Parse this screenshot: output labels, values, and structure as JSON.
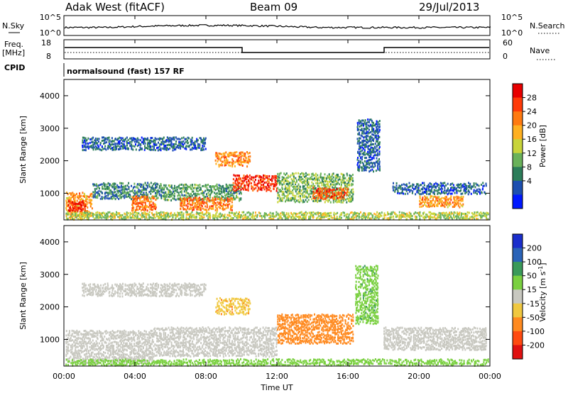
{
  "header": {
    "station": "Adak West (fitACF)",
    "beam": "Beam 09",
    "date": "29/Jul/2013"
  },
  "noise_panel": {
    "left_label": "N.Sky",
    "right_label": "N.Search",
    "left_ticks": [
      "10^5",
      "10^0"
    ],
    "right_ticks": [
      "10^5",
      "10^0"
    ]
  },
  "freq_panel": {
    "left_label_1": "Freq.",
    "left_label_2": "[MHz]",
    "right_label": "Nave",
    "left_ticks": [
      "18",
      "8"
    ],
    "right_ticks": [
      "60",
      "0"
    ]
  },
  "cpid": {
    "label": "CPID",
    "value": "normalsound (fast) 157 RF"
  },
  "colors": {
    "power_scale": [
      "#0018ff",
      "#1d4fb0",
      "#2c7d5a",
      "#6ab25a",
      "#c8d43a",
      "#ffb020",
      "#ff7a10",
      "#ff3a08",
      "#e80000"
    ],
    "velocity_scale": [
      "#1a2ecc",
      "#2a63b8",
      "#3a9a5a",
      "#7ad040",
      "#c8c8c0",
      "#f0c840",
      "#ff8a20",
      "#ff4a10",
      "#e01010"
    ]
  },
  "chart_data": [
    {
      "type": "heatmap",
      "title": "",
      "xlabel": "",
      "ylabel": "Slant Range [km]",
      "xlim": [
        "00:00",
        "00:00"
      ],
      "ylim": [
        180,
        4500
      ],
      "ytick_labels": [
        "1000",
        "2000",
        "3000",
        "4000"
      ],
      "colorbar": {
        "label": "Power [dB]",
        "range": [
          0,
          30
        ],
        "tick_labels": [
          "4",
          "8",
          "12",
          "16",
          "20",
          "24",
          "28"
        ]
      },
      "echo_regions": [
        {
          "t0": 0.0,
          "t1": 1.6,
          "r0": 300,
          "r1": 1050,
          "value": 20
        },
        {
          "t0": 0.2,
          "t1": 1.2,
          "r0": 450,
          "r1": 800,
          "value": 27
        },
        {
          "t0": 1.6,
          "t1": 5.5,
          "r0": 850,
          "r1": 1350,
          "value": 8
        },
        {
          "t0": 3.8,
          "t1": 5.2,
          "r0": 500,
          "r1": 950,
          "value": 22
        },
        {
          "t0": 1.0,
          "t1": 8.0,
          "r0": 2350,
          "r1": 2750,
          "value": 6
        },
        {
          "t0": 5.5,
          "t1": 10.0,
          "r0": 800,
          "r1": 1300,
          "value": 10
        },
        {
          "t0": 6.5,
          "t1": 9.5,
          "r0": 500,
          "r1": 900,
          "value": 22
        },
        {
          "t0": 9.5,
          "t1": 12.0,
          "r0": 1100,
          "r1": 1600,
          "value": 26
        },
        {
          "t0": 8.5,
          "t1": 10.5,
          "r0": 1850,
          "r1": 2300,
          "value": 21
        },
        {
          "t0": 12.0,
          "t1": 16.3,
          "r0": 750,
          "r1": 1650,
          "value": 12
        },
        {
          "t0": 14.0,
          "t1": 16.0,
          "r0": 850,
          "r1": 1200,
          "value": 24
        },
        {
          "t0": 16.5,
          "t1": 17.8,
          "r0": 1700,
          "r1": 3300,
          "value": 6
        },
        {
          "t0": 18.5,
          "t1": 23.8,
          "r0": 1000,
          "r1": 1350,
          "value": 6
        },
        {
          "t0": 20.0,
          "t1": 22.5,
          "r0": 600,
          "r1": 950,
          "value": 20
        },
        {
          "t0": 0.0,
          "t1": 24.0,
          "r0": 180,
          "r1": 450,
          "value": 14
        }
      ]
    },
    {
      "type": "heatmap",
      "title": "",
      "xlabel": "Time UT",
      "ylabel": "Slant Range [km]",
      "xlim": [
        "00:00",
        "00:00"
      ],
      "ylim": [
        180,
        4500
      ],
      "ytick_labels": [
        "1000",
        "2000",
        "3000",
        "4000"
      ],
      "xtick_labels": [
        "00:00",
        "04:00",
        "08:00",
        "12:00",
        "16:00",
        "20:00",
        "00:00"
      ],
      "colorbar": {
        "label": "Velocity [m s^-1]",
        "range": [
          -250,
          250
        ],
        "tick_labels": [
          "200",
          "100",
          "50",
          "15",
          "-15",
          "-50",
          "-100",
          "-200"
        ]
      },
      "echo_regions": [
        {
          "t0": 0.0,
          "t1": 5.0,
          "r0": 300,
          "r1": 1300,
          "value": 0
        },
        {
          "t0": 5.0,
          "t1": 12.0,
          "r0": 500,
          "r1": 1400,
          "value": 0
        },
        {
          "t0": 1.0,
          "t1": 8.0,
          "r0": 2350,
          "r1": 2750,
          "value": 0
        },
        {
          "t0": 8.5,
          "t1": 10.5,
          "r0": 1800,
          "r1": 2300,
          "value": -40
        },
        {
          "t0": 12.0,
          "t1": 16.3,
          "r0": 900,
          "r1": 1800,
          "value": -70
        },
        {
          "t0": 16.4,
          "t1": 17.7,
          "r0": 1500,
          "r1": 3300,
          "value": 40
        },
        {
          "t0": 18.0,
          "t1": 23.8,
          "r0": 700,
          "r1": 1400,
          "value": 0
        },
        {
          "t0": 0.0,
          "t1": 24.0,
          "r0": 180,
          "r1": 420,
          "value": 30
        }
      ]
    }
  ]
}
